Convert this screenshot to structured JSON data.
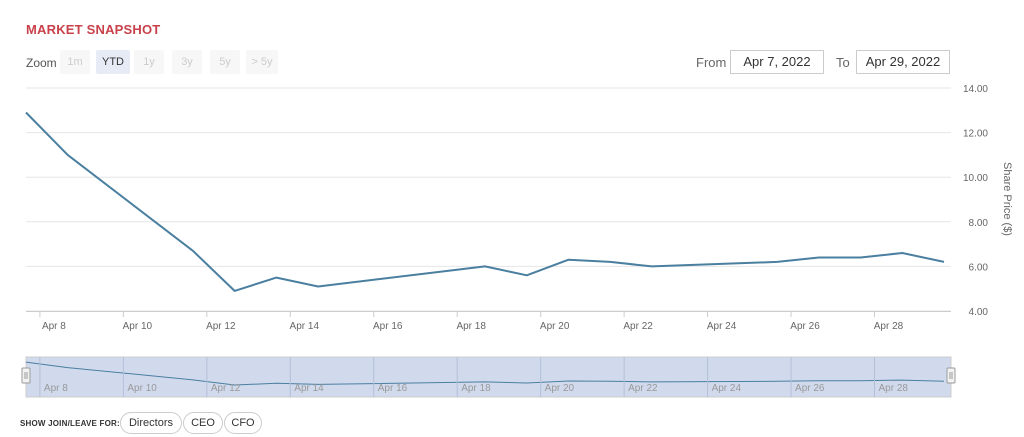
{
  "header": {
    "title": "MARKET SNAPSHOT"
  },
  "zoom": {
    "label": "Zoom",
    "buttons": [
      {
        "label": "1m",
        "active": false
      },
      {
        "label": "YTD",
        "active": true
      },
      {
        "label": "1y",
        "active": false
      },
      {
        "label": "3y",
        "active": false
      },
      {
        "label": "5y",
        "active": false
      },
      {
        "label": "> 5y",
        "active": false
      }
    ]
  },
  "range": {
    "from_label": "From",
    "from_value": "Apr 7, 2022",
    "to_label": "To",
    "to_value": "Apr 29, 2022"
  },
  "chart_data": {
    "type": "line",
    "title": "",
    "ylabel": "Share Price ($)",
    "xlabel": "",
    "ylim": [
      4,
      14
    ],
    "y_ticks": [
      "4.00",
      "6.00",
      "8.00",
      "10.00",
      "12.00",
      "14.00"
    ],
    "x_range": [
      "2022-04-07 16:00",
      "2022-04-29 20:00"
    ],
    "x_ticks": [
      {
        "date": "2022-04-08",
        "label": "Apr 8"
      },
      {
        "date": "2022-04-10",
        "label": "Apr 10"
      },
      {
        "date": "2022-04-12",
        "label": "Apr 12"
      },
      {
        "date": "2022-04-14",
        "label": "Apr 14"
      },
      {
        "date": "2022-04-16",
        "label": "Apr 16"
      },
      {
        "date": "2022-04-18",
        "label": "Apr 18"
      },
      {
        "date": "2022-04-20",
        "label": "Apr 20"
      },
      {
        "date": "2022-04-22",
        "label": "Apr 22"
      },
      {
        "date": "2022-04-24",
        "label": "Apr 24"
      },
      {
        "date": "2022-04-26",
        "label": "Apr 26"
      },
      {
        "date": "2022-04-28",
        "label": "Apr 28"
      }
    ],
    "series": [
      {
        "color": "#4a7fa0",
        "x": [
          "2022-04-07 16:00",
          "2022-04-08 16:00",
          "2022-04-11 16:00",
          "2022-04-12 16:00",
          "2022-04-13 16:00",
          "2022-04-14 16:00",
          "2022-04-18 16:00",
          "2022-04-19 16:00",
          "2022-04-20 16:00",
          "2022-04-21 16:00",
          "2022-04-22 16:00",
          "2022-04-25 16:00",
          "2022-04-26 16:00",
          "2022-04-27 16:00",
          "2022-04-28 16:00",
          "2022-04-29 16:00"
        ],
        "values": [
          12.9,
          11.0,
          6.7,
          4.9,
          5.5,
          5.1,
          6.0,
          5.6,
          6.3,
          6.2,
          6.0,
          6.2,
          6.4,
          6.4,
          6.6,
          6.2
        ]
      }
    ],
    "grid": true,
    "legend": "none"
  },
  "navigator": {
    "handle_left": "⦀",
    "handle_right": "⦀"
  },
  "filters": {
    "label": "SHOW JOIN/LEAVE FOR:",
    "buttons": [
      "Directors",
      "CEO",
      "CFO"
    ]
  }
}
